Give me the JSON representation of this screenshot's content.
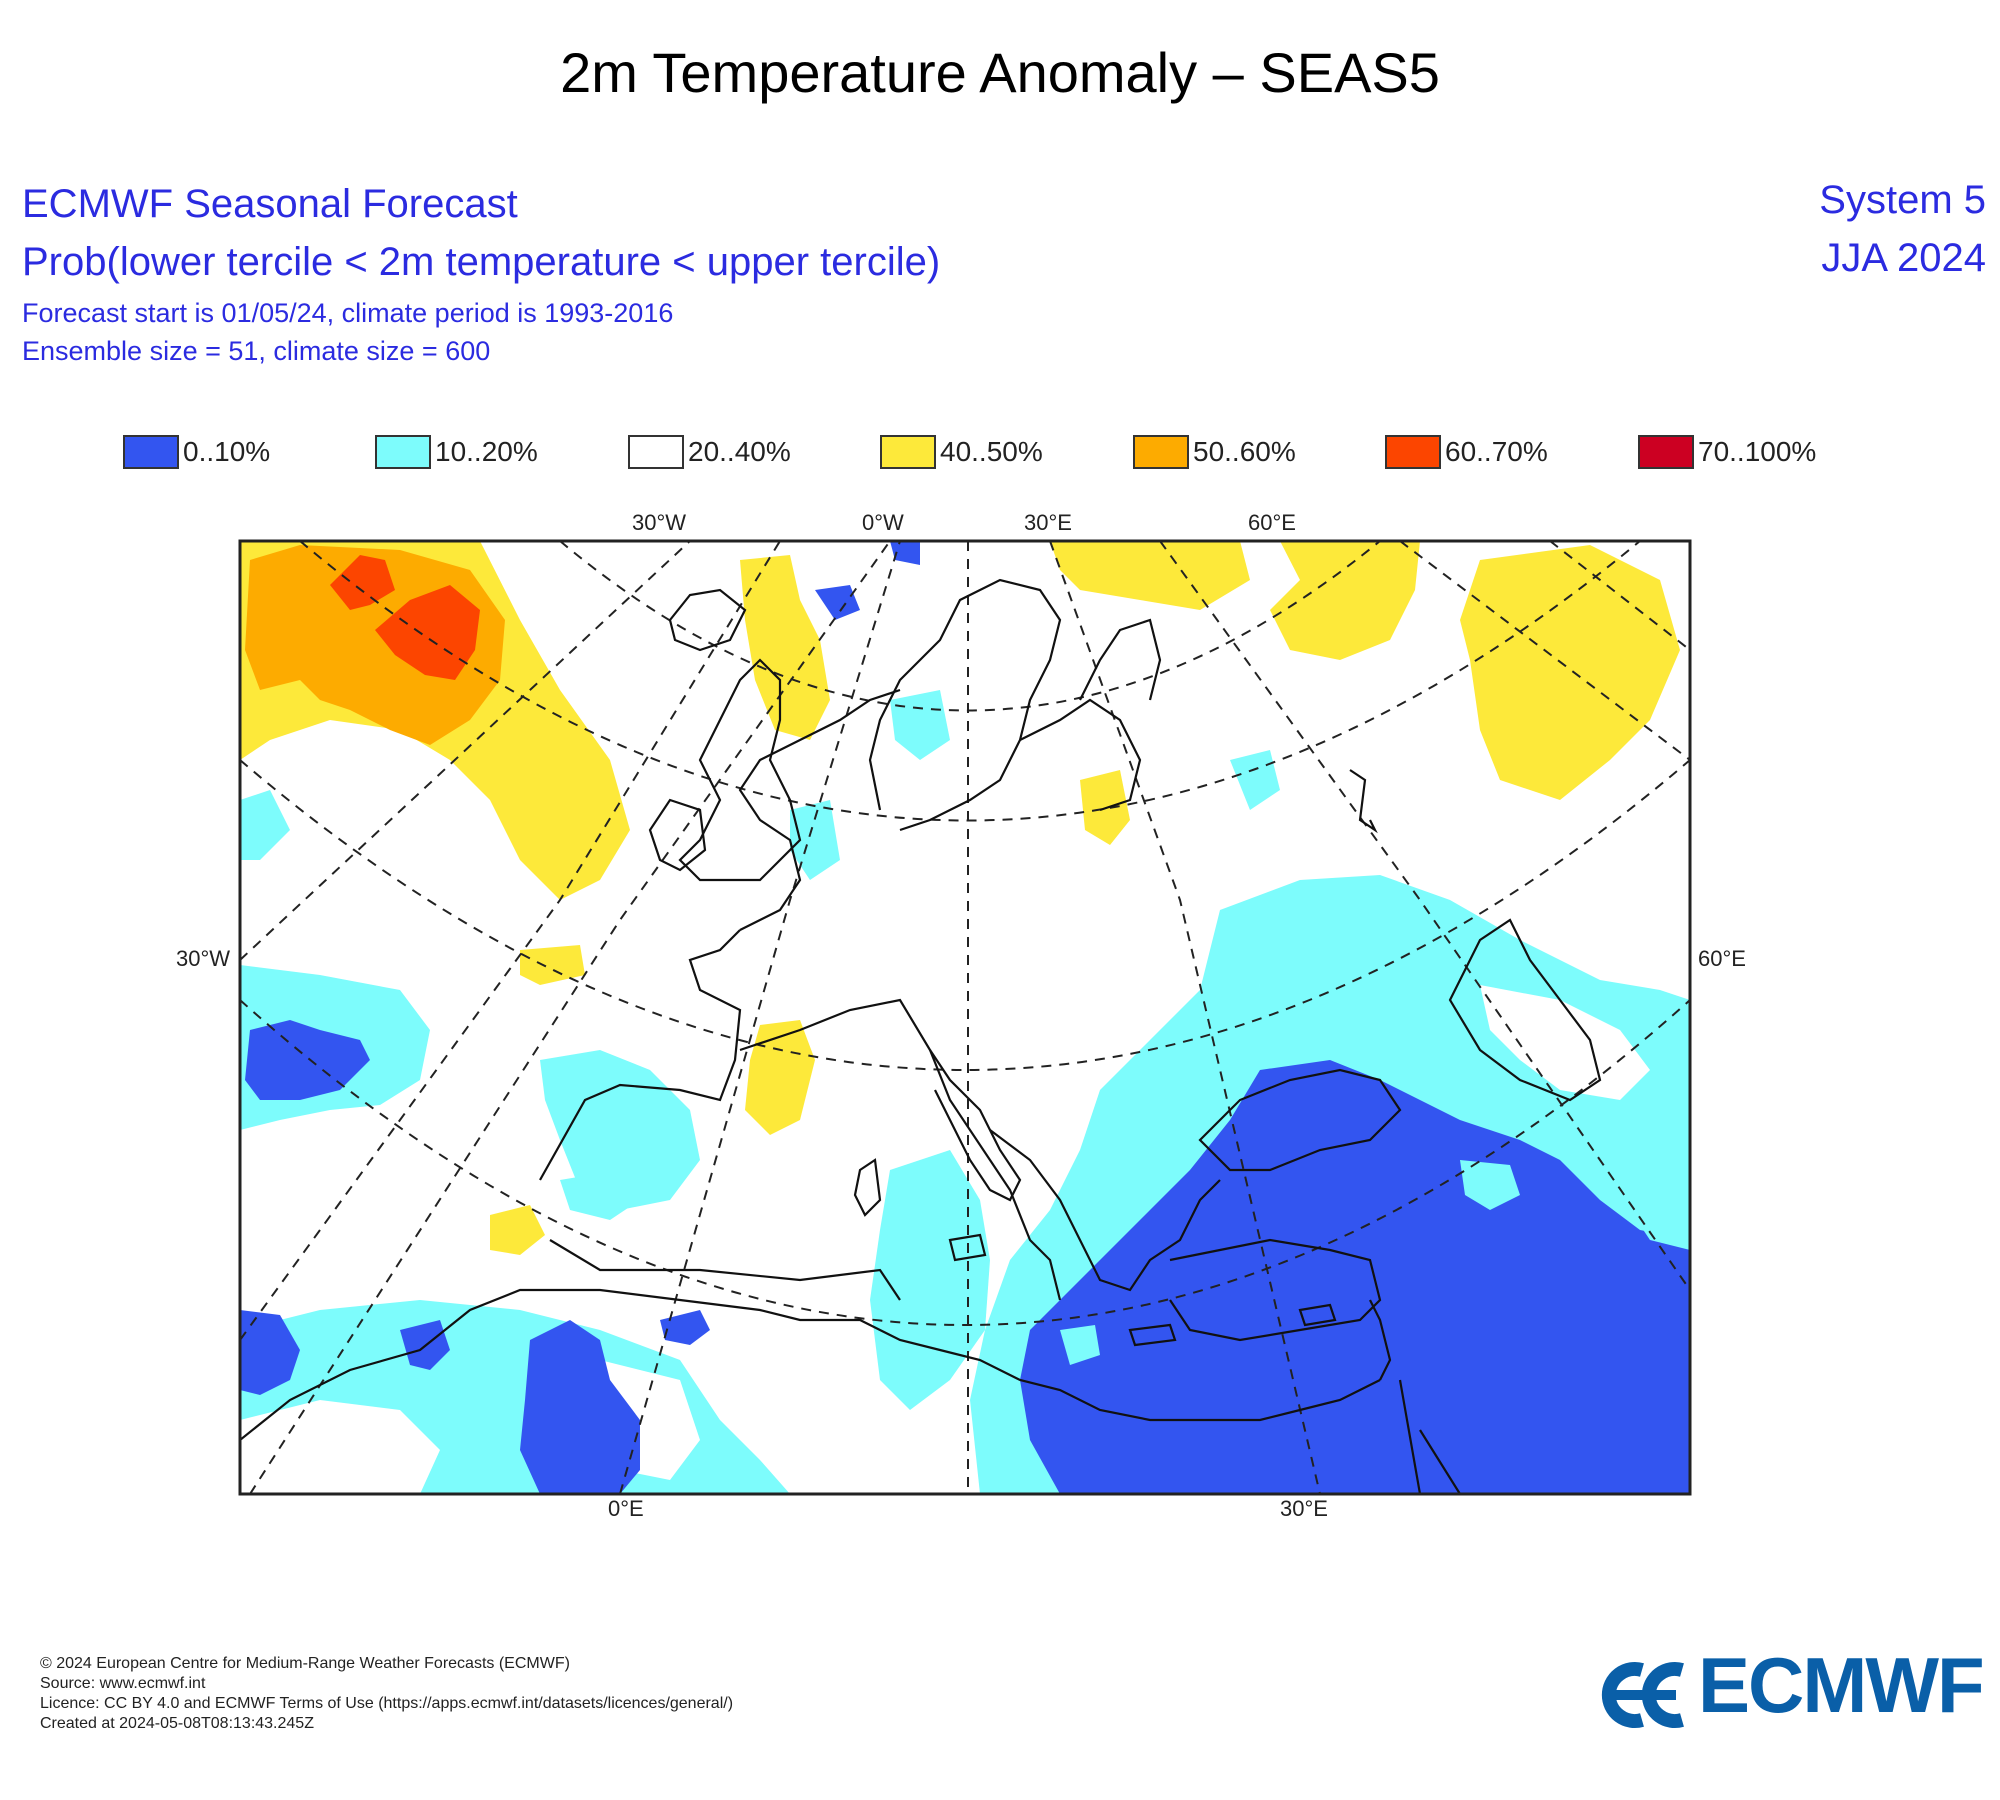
{
  "title": "2m Temperature Anomaly – SEAS5",
  "header": {
    "forecast_title": "ECMWF Seasonal Forecast",
    "subtitle": "Prob(lower tercile < 2m temperature < upper tercile)",
    "line3": "Forecast start is 01/05/24, climate period is 1993-2016",
    "line4": "Ensemble size = 51, climate size = 600",
    "system": "System 5",
    "period": "JJA 2024"
  },
  "legend": [
    {
      "label": "0..10%",
      "color": "#3355f0"
    },
    {
      "label": "10..20%",
      "color": "#7dfcfc"
    },
    {
      "label": "20..40%",
      "color": "#ffffff"
    },
    {
      "label": "40..50%",
      "color": "#fde93a"
    },
    {
      "label": "50..60%",
      "color": "#fdab00"
    },
    {
      "label": "60..70%",
      "color": "#fc4500"
    },
    {
      "label": "70..100%",
      "color": "#cc0022"
    }
  ],
  "map": {
    "top_ticks": [
      "30°W",
      "0°W",
      "30°E",
      "60°E"
    ],
    "left_tick": "30°W",
    "right_tick": "60°E",
    "bottom_ticks": [
      "0°E",
      "30°E"
    ]
  },
  "footer": {
    "copyright": "© 2024 European Centre for Medium-Range Weather Forecasts (ECMWF)",
    "source": "Source: www.ecmwf.int",
    "licence": "Licence: CC BY 4.0 and ECMWF Terms of Use (https://apps.ecmwf.int/datasets/licences/general/)",
    "created": "Created at 2024-05-08T08:13:43.245Z"
  },
  "logo": {
    "text": "ECMWF",
    "color": "#0a5fa8"
  }
}
